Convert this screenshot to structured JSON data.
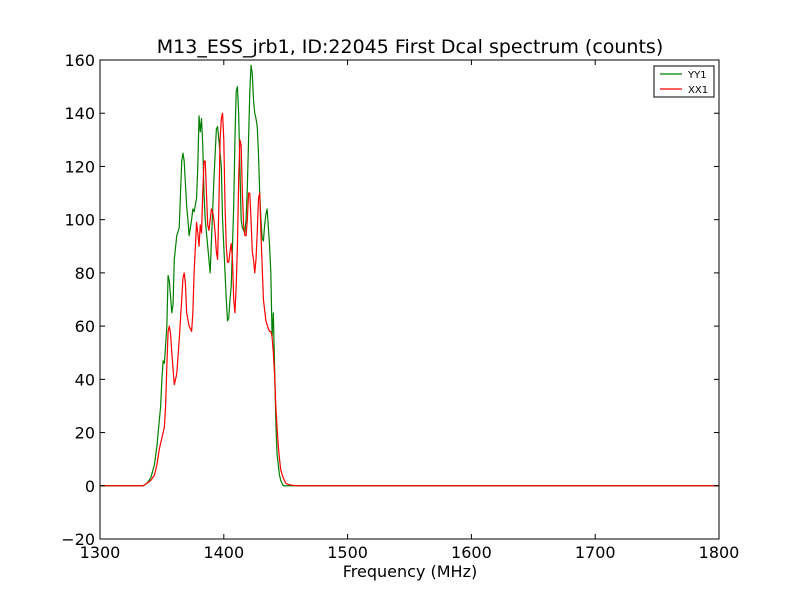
{
  "chart_data": {
    "type": "line",
    "title": "M13_ESS_jrb1, ID:22045 First Dcal spectrum (counts)",
    "xlabel": "Frequency (MHz)",
    "ylabel": "",
    "xlim": [
      1300,
      1800
    ],
    "ylim": [
      -20,
      160
    ],
    "xticks": [
      1300,
      1400,
      1500,
      1600,
      1700,
      1800
    ],
    "yticks": [
      -20,
      0,
      20,
      40,
      60,
      80,
      100,
      120,
      140,
      160
    ],
    "xtick_labels": [
      "1300",
      "1400",
      "1500",
      "1600",
      "1700",
      "1800"
    ],
    "ytick_labels": [
      "−20",
      "0",
      "20",
      "40",
      "60",
      "80",
      "100",
      "120",
      "140",
      "160"
    ],
    "grid": false,
    "legend_position": "top-right",
    "series": [
      {
        "name": "YY1",
        "color": "#008000",
        "x": [
          1300,
          1320,
          1330,
          1335,
          1338,
          1341,
          1344,
          1346,
          1348,
          1349,
          1350,
          1351,
          1352,
          1354,
          1355,
          1356,
          1358,
          1359,
          1360,
          1362,
          1364,
          1366,
          1367,
          1368,
          1370,
          1371,
          1372,
          1374,
          1375,
          1376,
          1378,
          1379,
          1380,
          1381,
          1382,
          1383,
          1384,
          1385,
          1386,
          1388,
          1389,
          1390,
          1392,
          1394,
          1395,
          1396,
          1398,
          1399,
          1400,
          1401,
          1402,
          1403,
          1404,
          1405,
          1406,
          1407,
          1408,
          1409,
          1410,
          1411,
          1412,
          1413,
          1414,
          1415,
          1416,
          1417,
          1418,
          1419,
          1420,
          1421,
          1422,
          1423,
          1424,
          1425,
          1426,
          1427,
          1428,
          1429,
          1430,
          1431,
          1432,
          1433,
          1434,
          1435,
          1436,
          1437,
          1438,
          1439,
          1440,
          1441,
          1441.5,
          1442,
          1442.5,
          1443,
          1444,
          1445,
          1446,
          1447,
          1448,
          1450,
          1452,
          1455,
          1460,
          1470,
          1500,
          1550,
          1600,
          1650,
          1700,
          1745,
          1750,
          1800
        ],
        "y": [
          0,
          0,
          0,
          0,
          1,
          3,
          8,
          15,
          25,
          30,
          40,
          47,
          46,
          60,
          79,
          77,
          65,
          68,
          85,
          94,
          97,
          122,
          125,
          122,
          105,
          100,
          94,
          100,
          104,
          103,
          108,
          120,
          139,
          133,
          138,
          128,
          110,
          100,
          95,
          85,
          80,
          92,
          115,
          134,
          135,
          130,
          120,
          100,
          90,
          80,
          70,
          62,
          63,
          70,
          75,
          90,
          105,
          130,
          148,
          150,
          140,
          120,
          100,
          97,
          96,
          95,
          100,
          112,
          130,
          148,
          158,
          155,
          145,
          140,
          138,
          135,
          125,
          110,
          100,
          93,
          92,
          98,
          102,
          104,
          97,
          90,
          80,
          56,
          65,
          45,
          35,
          25,
          18,
          12,
          8,
          4,
          2,
          1,
          0,
          0,
          0,
          0,
          0,
          0,
          0,
          0,
          0,
          0,
          0,
          0,
          0,
          0
        ]
      },
      {
        "name": "XX1",
        "color": "#ff0000",
        "x": [
          1300,
          1320,
          1330,
          1335,
          1338,
          1341,
          1344,
          1346,
          1348,
          1350,
          1352,
          1353,
          1354,
          1355,
          1356,
          1357,
          1358,
          1360,
          1362,
          1364,
          1366,
          1367,
          1368,
          1369,
          1370,
          1372,
          1374,
          1375,
          1376,
          1378,
          1379,
          1380,
          1381,
          1382,
          1383,
          1384,
          1385,
          1386,
          1387,
          1388,
          1389,
          1390,
          1391,
          1392,
          1393,
          1394,
          1395,
          1396,
          1397,
          1398,
          1399,
          1400,
          1401,
          1402,
          1403,
          1404,
          1405,
          1406,
          1407,
          1408,
          1409,
          1410,
          1411,
          1412,
          1413,
          1414,
          1415,
          1416,
          1417,
          1418,
          1419,
          1420,
          1421,
          1422,
          1423,
          1424,
          1425,
          1426,
          1427,
          1428,
          1429,
          1430,
          1432,
          1434,
          1436,
          1437,
          1438,
          1439,
          1440,
          1441,
          1442,
          1443,
          1444,
          1445,
          1446,
          1448,
          1450,
          1452,
          1455,
          1460,
          1470,
          1480,
          1500,
          1550,
          1600,
          1650,
          1700,
          1750,
          1800
        ],
        "y": [
          0,
          0,
          0,
          0,
          1,
          2,
          4,
          8,
          14,
          18,
          22,
          30,
          45,
          58,
          60,
          57,
          50,
          38,
          42,
          55,
          70,
          78,
          80,
          76,
          65,
          60,
          58,
          65,
          80,
          99,
          95,
          90,
          98,
          95,
          110,
          122,
          122,
          110,
          98,
          96,
          100,
          104,
          103,
          100,
          95,
          88,
          85,
          105,
          130,
          138,
          140,
          130,
          105,
          90,
          84,
          84,
          88,
          91,
          85,
          70,
          65,
          75,
          90,
          115,
          130,
          128,
          110,
          98,
          94,
          94,
          100,
          110,
          110,
          100,
          88,
          85,
          80,
          85,
          95,
          108,
          110,
          95,
          70,
          62,
          59,
          58,
          58,
          56,
          50,
          42,
          30,
          22,
          15,
          10,
          6,
          3,
          1,
          0.5,
          0.2,
          0,
          0,
          0,
          0,
          0,
          0,
          0,
          0,
          0,
          0
        ]
      }
    ]
  }
}
